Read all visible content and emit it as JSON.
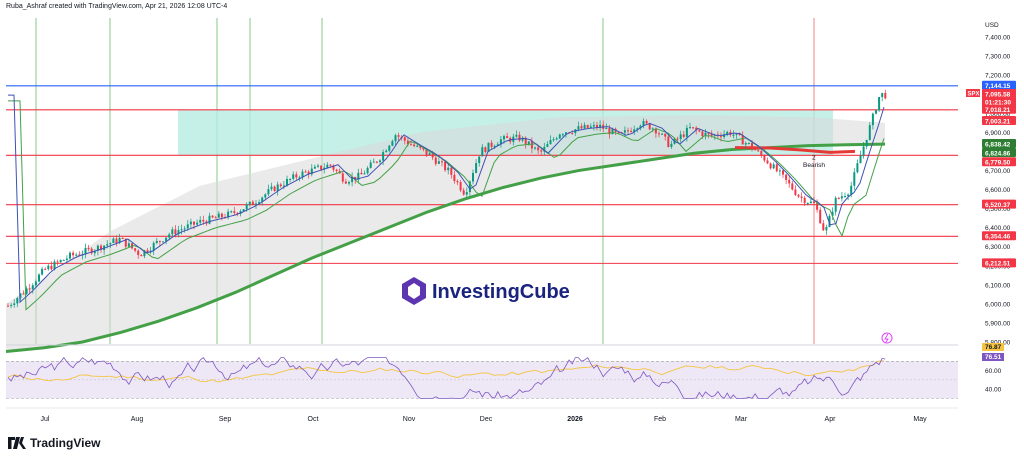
{
  "header": {
    "text": "Ruba_Ashraf created with TradingView.com, Apr 21, 2026 12:08 UTC-4"
  },
  "footer": {
    "brand": "TradingView"
  },
  "watermark": {
    "text": "InvestingCube"
  },
  "colors": {
    "blue_line": "#2962ff",
    "red_line": "#f23645",
    "green_line": "#4caf50",
    "ma200": "#43a047",
    "ma_red": "#e53935",
    "box_fill": "#b2ebe0",
    "grey_fill": "#d8d8d8",
    "rsi_fill": "#ede7f6",
    "rsi_line": "#7e57c2",
    "rsi_ma": "#f5c542",
    "up": "#089981",
    "down": "#f23645"
  },
  "chart_data": {
    "type": "candlestick",
    "symbol": "SPX",
    "currency": "USD",
    "y_ticks": [
      7400,
      7300,
      7200,
      7100,
      7000,
      6900,
      6800,
      6700,
      6600,
      6500,
      6400,
      6300,
      6200,
      6100,
      6000,
      5900,
      5800
    ],
    "y_tick_labels": [
      "7,400.00",
      "7,300.00",
      "7,200.00",
      "7,100.00",
      "7,000.00",
      "6,900.00",
      "6,800.00",
      "6,700.00",
      "6,600.00",
      "6,500.00",
      "6,400.00",
      "6,300.00",
      "6,200.00",
      "6,100.00",
      "6,000.00",
      "5,900.00",
      "5,800.00"
    ],
    "ylim": [
      5800,
      7450
    ],
    "x_labels": [
      "Jul",
      "Aug",
      "Sep",
      "Oct",
      "Nov",
      "Dec",
      "2026",
      "Feb",
      "Mar",
      "Apr",
      "May"
    ],
    "horizontal_levels": [
      {
        "value": 7144.15,
        "label": "7,144.15",
        "color": "blue"
      },
      {
        "value": 7018.21,
        "label": "7,018.21",
        "color": "red"
      },
      {
        "value": 6779.5,
        "label": "6,779.50",
        "color": "red"
      },
      {
        "value": 6520.37,
        "label": "6,520.37",
        "color": "red"
      },
      {
        "value": 6354.46,
        "label": "6,354.46",
        "color": "red"
      },
      {
        "value": 6212.51,
        "label": "6,212.51",
        "color": "red"
      }
    ],
    "price_tags": [
      {
        "text": "7,095.58",
        "color": "red"
      },
      {
        "text": "01:21:30",
        "color": "red"
      },
      {
        "text": "7,003.21",
        "color": "red"
      },
      {
        "text": "6,838.42",
        "color": "green"
      },
      {
        "text": "6,824.86",
        "color": "green"
      }
    ],
    "symbol_tag": "SPX",
    "annotation": {
      "number": "2",
      "text": "Bearish"
    },
    "consolidation_zone": {
      "from": "Sep",
      "to": "Apr",
      "top": 7018,
      "bottom": 6780
    },
    "moving_average_200": [
      [
        0,
        5750
      ],
      [
        20,
        5770
      ],
      [
        40,
        5800
      ],
      [
        60,
        5850
      ],
      [
        80,
        5910
      ],
      [
        100,
        5980
      ],
      [
        120,
        6060
      ],
      [
        140,
        6150
      ],
      [
        160,
        6240
      ],
      [
        180,
        6320
      ],
      [
        200,
        6400
      ],
      [
        220,
        6480
      ],
      [
        240,
        6550
      ],
      [
        260,
        6610
      ],
      [
        280,
        6660
      ],
      [
        300,
        6700
      ],
      [
        320,
        6730
      ],
      [
        340,
        6760
      ],
      [
        360,
        6790
      ],
      [
        380,
        6810
      ],
      [
        400,
        6820
      ],
      [
        420,
        6830
      ],
      [
        440,
        6835
      ],
      [
        460,
        6838
      ]
    ],
    "rsi": {
      "ticks": [
        60,
        40
      ],
      "labels": [
        "60.00",
        "40.00"
      ],
      "current": [
        "76.87",
        "76.51"
      ]
    }
  }
}
